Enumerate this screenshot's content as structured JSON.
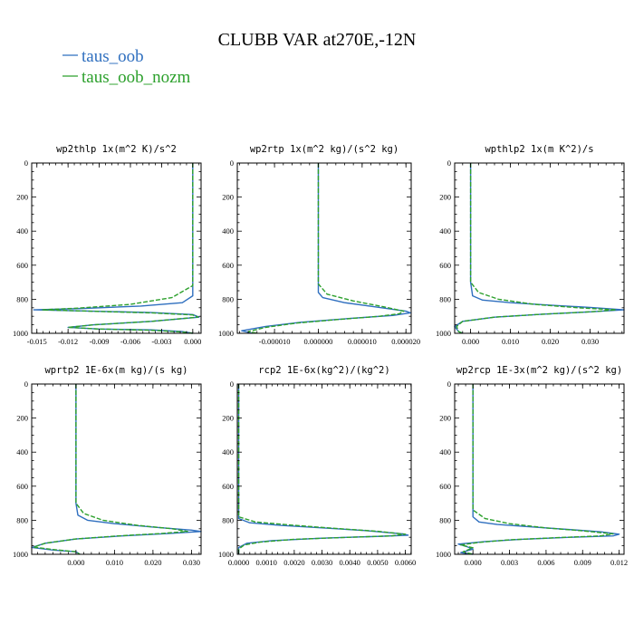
{
  "figure": {
    "title": "CLUBB VAR at270E,-12N",
    "legend": [
      {
        "label": "taus_oob",
        "color": "#2f6fbf",
        "dash": false
      },
      {
        "label": "taus_oob_nozm",
        "color": "#2ca02c",
        "dash": true
      }
    ]
  },
  "chart_data": [
    {
      "type": "line",
      "title": "wp2thlp  1x(m^2 K)/s^2",
      "xlim": [
        -0.0155,
        0.0008
      ],
      "ylim": [
        1000,
        0
      ],
      "xticks": [
        -0.015,
        -0.012,
        -0.009,
        -0.006,
        -0.003,
        0.0
      ],
      "xtick_labels": [
        "-0.015",
        "-0.012",
        "-0.009",
        "-0.006",
        "-0.003",
        "0.000"
      ],
      "yticks": [
        0,
        200,
        400,
        600,
        800,
        1000
      ],
      "ytick_labels": [
        "0",
        "200",
        "400",
        "600",
        "800",
        "1000"
      ],
      "series": [
        {
          "color": "#2f6fbf",
          "dash": false,
          "points": [
            [
              0.0,
              0
            ],
            [
              0.0,
              700
            ],
            [
              0.0,
              780
            ],
            [
              -0.001,
              820
            ],
            [
              -0.005,
              840
            ],
            [
              -0.011,
              855
            ],
            [
              -0.0153,
              862
            ],
            [
              -0.011,
              868
            ],
            [
              -0.004,
              878
            ],
            [
              0.0,
              890
            ],
            [
              0.0006,
              905
            ],
            [
              -0.004,
              930
            ],
            [
              -0.0095,
              950
            ],
            [
              -0.012,
              965
            ],
            [
              -0.009,
              975
            ],
            [
              -0.004,
              980
            ],
            [
              -0.001,
              990
            ],
            [
              0.0,
              1000
            ]
          ]
        },
        {
          "color": "#2ca02c",
          "dash": true,
          "points": [
            [
              0.0,
              0
            ],
            [
              0.0,
              720
            ],
            [
              -0.002,
              790
            ],
            [
              -0.006,
              830
            ],
            [
              -0.011,
              852
            ],
            [
              -0.0145,
              862
            ],
            [
              -0.01,
              870
            ],
            [
              -0.004,
              880
            ],
            [
              0.0,
              892
            ],
            [
              0.0005,
              905
            ],
            [
              -0.004,
              930
            ],
            [
              -0.0095,
              950
            ],
            [
              -0.012,
              965
            ],
            [
              -0.009,
              975
            ],
            [
              -0.004,
              982
            ],
            [
              -0.001,
              992
            ],
            [
              0.0,
              1000
            ]
          ]
        }
      ]
    },
    {
      "type": "line",
      "title": "wp2rtp  1x(m^2 kg)/(s^2 kg)",
      "xlim": [
        -1.85e-05,
        2.12e-05
      ],
      "ylim": [
        1000,
        0
      ],
      "xticks": [
        -1e-05,
        0.0,
        1e-05,
        2e-05
      ],
      "xtick_labels": [
        "-0.000010",
        "0.000000",
        "0.000010",
        "0.000020"
      ],
      "yticks": [
        0,
        200,
        400,
        600,
        800,
        1000
      ],
      "ytick_labels": [
        "0",
        "200",
        "400",
        "600",
        "800",
        "1000"
      ],
      "series": [
        {
          "color": "#2f6fbf",
          "dash": false,
          "points": [
            [
              0.0,
              0
            ],
            [
              0.0,
              700
            ],
            [
              0.0,
              760
            ],
            [
              1e-06,
              790
            ],
            [
              6e-06,
              820
            ],
            [
              1.3e-05,
              845
            ],
            [
              2e-05,
              870
            ],
            [
              2.1e-05,
              880
            ],
            [
              1.7e-05,
              895
            ],
            [
              6e-06,
              915
            ],
            [
              -4e-06,
              935
            ],
            [
              -1.2e-05,
              960
            ],
            [
              -1.75e-05,
              985
            ],
            [
              -1.5e-05,
              1000
            ]
          ]
        },
        {
          "color": "#2ca02c",
          "dash": true,
          "points": [
            [
              0.0,
              0
            ],
            [
              0.0,
              710
            ],
            [
              2e-06,
              770
            ],
            [
              8e-06,
              810
            ],
            [
              1.5e-05,
              845
            ],
            [
              1.95e-05,
              870
            ],
            [
              1.85e-05,
              885
            ],
            [
              1.4e-05,
              900
            ],
            [
              4e-06,
              920
            ],
            [
              -5e-06,
              940
            ],
            [
              -1.2e-05,
              965
            ],
            [
              -1.6e-05,
              990
            ],
            [
              -1.4e-05,
              1000
            ]
          ]
        }
      ]
    },
    {
      "type": "line",
      "title": "wpthlp2  1x(m K^2)/s",
      "xlim": [
        -0.004,
        0.0385
      ],
      "ylim": [
        1000,
        0
      ],
      "xticks": [
        0.0,
        0.01,
        0.02,
        0.03
      ],
      "xtick_labels": [
        "0.000",
        "0.010",
        "0.020",
        "0.030"
      ],
      "yticks": [
        0,
        200,
        400,
        600,
        800,
        1000
      ],
      "ytick_labels": [
        "0",
        "200",
        "400",
        "600",
        "800",
        "1000"
      ],
      "series": [
        {
          "color": "#2f6fbf",
          "dash": false,
          "points": [
            [
              0.0,
              0
            ],
            [
              0.0,
              700
            ],
            [
              0.0005,
              780
            ],
            [
              0.003,
              805
            ],
            [
              0.01,
              820
            ],
            [
              0.02,
              835
            ],
            [
              0.03,
              848
            ],
            [
              0.0385,
              862
            ],
            [
              0.03,
              874
            ],
            [
              0.018,
              888
            ],
            [
              0.006,
              905
            ],
            [
              -0.002,
              930
            ],
            [
              -0.004,
              960
            ],
            [
              -0.003,
              990
            ],
            [
              -0.002,
              1000
            ]
          ]
        },
        {
          "color": "#2ca02c",
          "dash": true,
          "points": [
            [
              0.0,
              0
            ],
            [
              0.0,
              700
            ],
            [
              0.002,
              760
            ],
            [
              0.007,
              800
            ],
            [
              0.016,
              830
            ],
            [
              0.027,
              850
            ],
            [
              0.0365,
              862
            ],
            [
              0.03,
              874
            ],
            [
              0.018,
              888
            ],
            [
              0.006,
              905
            ],
            [
              -0.002,
              930
            ],
            [
              -0.0035,
              960
            ],
            [
              -0.003,
              990
            ],
            [
              -0.002,
              1000
            ]
          ]
        }
      ]
    },
    {
      "type": "line",
      "title": "wprtp2  1E-6x(m kg)/(s kg)",
      "xlim": [
        -0.0115,
        0.0325
      ],
      "ylim": [
        1000,
        0
      ],
      "xticks": [
        0.0,
        0.01,
        0.02,
        0.03
      ],
      "xtick_labels": [
        "0.000",
        "0.010",
        "0.020",
        "0.030"
      ],
      "yticks": [
        0,
        200,
        400,
        600,
        800,
        1000
      ],
      "ytick_labels": [
        "0",
        "200",
        "400",
        "600",
        "800",
        "1000"
      ],
      "series": [
        {
          "color": "#2f6fbf",
          "dash": false,
          "points": [
            [
              0.0,
              0
            ],
            [
              0.0,
              700
            ],
            [
              0.0005,
              770
            ],
            [
              0.003,
              800
            ],
            [
              0.01,
              820
            ],
            [
              0.02,
              840
            ],
            [
              0.03,
              858
            ],
            [
              0.0325,
              866
            ],
            [
              0.024,
              878
            ],
            [
              0.012,
              892
            ],
            [
              0.0,
              910
            ],
            [
              -0.008,
              935
            ],
            [
              -0.0115,
              960
            ],
            [
              -0.006,
              975
            ],
            [
              0.0,
              985
            ],
            [
              0.001,
              1000
            ]
          ]
        },
        {
          "color": "#2ca02c",
          "dash": true,
          "points": [
            [
              0.0,
              0
            ],
            [
              0.0,
              700
            ],
            [
              0.002,
              760
            ],
            [
              0.007,
              800
            ],
            [
              0.016,
              830
            ],
            [
              0.025,
              850
            ],
            [
              0.029,
              866
            ],
            [
              0.022,
              878
            ],
            [
              0.011,
              892
            ],
            [
              0.0,
              910
            ],
            [
              -0.008,
              935
            ],
            [
              -0.011,
              958
            ],
            [
              -0.006,
              972
            ],
            [
              0.0,
              985
            ],
            [
              0.001,
              1000
            ]
          ]
        }
      ]
    },
    {
      "type": "line",
      "title": "rcp2  1E-6x(kg^2)/(kg^2)",
      "xlim": [
        -5e-05,
        0.00621
      ],
      "ylim": [
        1000,
        0
      ],
      "xticks": [
        0.0,
        0.001,
        0.002,
        0.003,
        0.004,
        0.005,
        0.006
      ],
      "xtick_labels": [
        "0.0000",
        "0.0010",
        "0.0020",
        "0.0030",
        "0.0040",
        "0.0050",
        "0.0060"
      ],
      "yticks": [
        0,
        200,
        400,
        600,
        800,
        1000
      ],
      "ytick_labels": [
        "0",
        "200",
        "400",
        "600",
        "800",
        "1000"
      ],
      "series": [
        {
          "color": "#2f6fbf",
          "dash": false,
          "points": [
            [
              0.0,
              0
            ],
            [
              0.0,
              790
            ],
            [
              0.0004,
              815
            ],
            [
              0.0015,
              830
            ],
            [
              0.003,
              845
            ],
            [
              0.0045,
              860
            ],
            [
              0.0059,
              880
            ],
            [
              0.0061,
              888
            ],
            [
              0.005,
              895
            ],
            [
              0.003,
              905
            ],
            [
              0.0012,
              920
            ],
            [
              0.0003,
              935
            ],
            [
              0.0,
              960
            ],
            [
              0.0,
              1000
            ]
          ]
        },
        {
          "color": "#2ca02c",
          "dash": true,
          "points": [
            [
              0.0,
              0
            ],
            [
              0.0,
              780
            ],
            [
              0.0006,
              810
            ],
            [
              0.002,
              830
            ],
            [
              0.0035,
              848
            ],
            [
              0.005,
              865
            ],
            [
              0.006,
              882
            ],
            [
              0.0055,
              892
            ],
            [
              0.004,
              900
            ],
            [
              0.002,
              912
            ],
            [
              0.0008,
              928
            ],
            [
              0.0002,
              945
            ],
            [
              0.0,
              970
            ],
            [
              0.0,
              1000
            ]
          ]
        }
      ]
    },
    {
      "type": "line",
      "title": "wp2rcp  1E-3x(m^2 kg)/(s^2 kg)",
      "xlim": [
        -0.0015,
        0.0124
      ],
      "ylim": [
        1000,
        0
      ],
      "xticks": [
        0.0,
        0.003,
        0.006,
        0.009,
        0.012
      ],
      "xtick_labels": [
        "0.000",
        "0.003",
        "0.006",
        "0.009",
        "0.012"
      ],
      "yticks": [
        0,
        200,
        400,
        600,
        800,
        1000
      ],
      "ytick_labels": [
        "0",
        "200",
        "400",
        "600",
        "800",
        "1000"
      ],
      "series": [
        {
          "color": "#2f6fbf",
          "dash": false,
          "points": [
            [
              0.0,
              0
            ],
            [
              0.0,
              780
            ],
            [
              0.0005,
              810
            ],
            [
              0.002,
              825
            ],
            [
              0.005,
              840
            ],
            [
              0.008,
              855
            ],
            [
              0.0105,
              868
            ],
            [
              0.012,
              882
            ],
            [
              0.0115,
              892
            ],
            [
              0.008,
              900
            ],
            [
              0.004,
              912
            ],
            [
              0.001,
              925
            ],
            [
              -0.0012,
              940
            ],
            [
              -0.0005,
              955
            ],
            [
              0.0,
              970
            ],
            [
              -0.001,
              990
            ],
            [
              0.0,
              1000
            ]
          ]
        },
        {
          "color": "#2ca02c",
          "dash": true,
          "points": [
            [
              0.0,
              0
            ],
            [
              0.0,
              740
            ],
            [
              0.001,
              790
            ],
            [
              0.003,
              820
            ],
            [
              0.006,
              845
            ],
            [
              0.009,
              862
            ],
            [
              0.0115,
              880
            ],
            [
              0.0105,
              892
            ],
            [
              0.007,
              902
            ],
            [
              0.003,
              915
            ],
            [
              0.0005,
              930
            ],
            [
              -0.001,
              945
            ],
            [
              0.0,
              962
            ],
            [
              -0.0008,
              985
            ],
            [
              0.0,
              1000
            ]
          ]
        }
      ]
    }
  ]
}
